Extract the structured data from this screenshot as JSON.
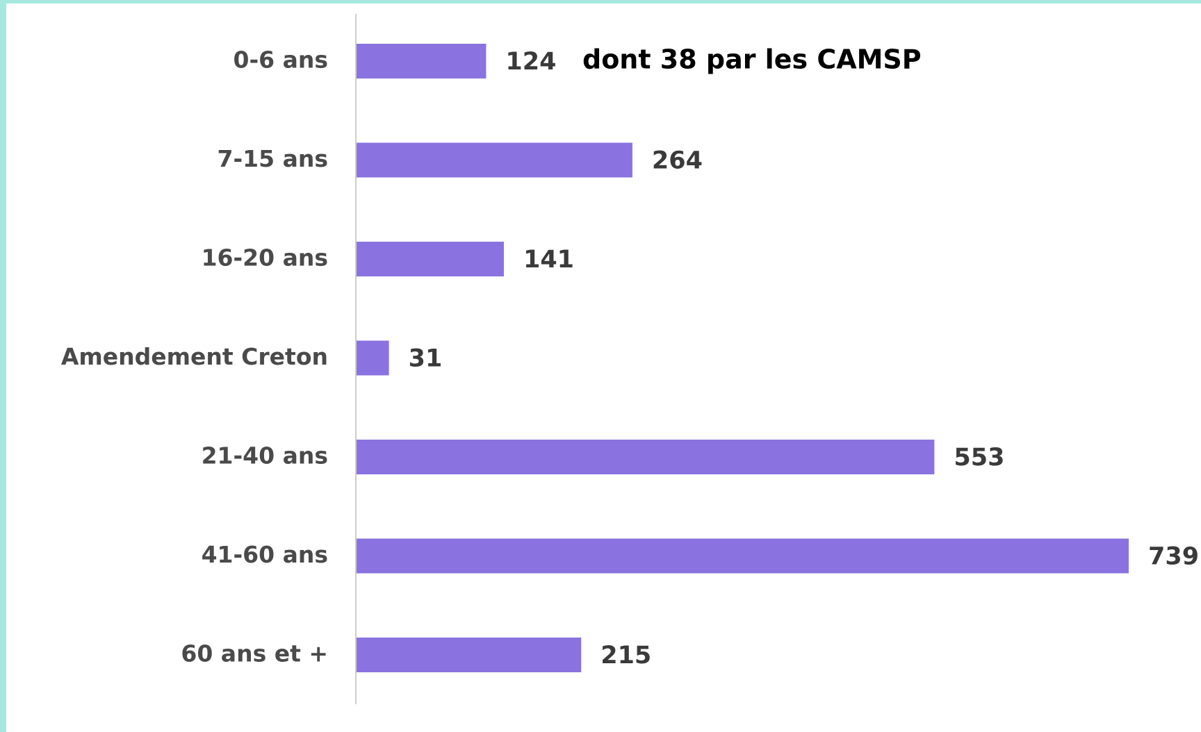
{
  "chart_data": {
    "type": "bar",
    "orientation": "horizontal",
    "categories": [
      "0-6 ans",
      "7-15 ans",
      "16-20 ans",
      "Amendement Creton",
      "21-40 ans",
      "41-60 ans",
      "60 ans et +"
    ],
    "values": [
      124,
      264,
      141,
      31,
      553,
      739,
      215
    ],
    "color": "#8a73e0",
    "annotation": "dont 38 par les CAMSP"
  }
}
